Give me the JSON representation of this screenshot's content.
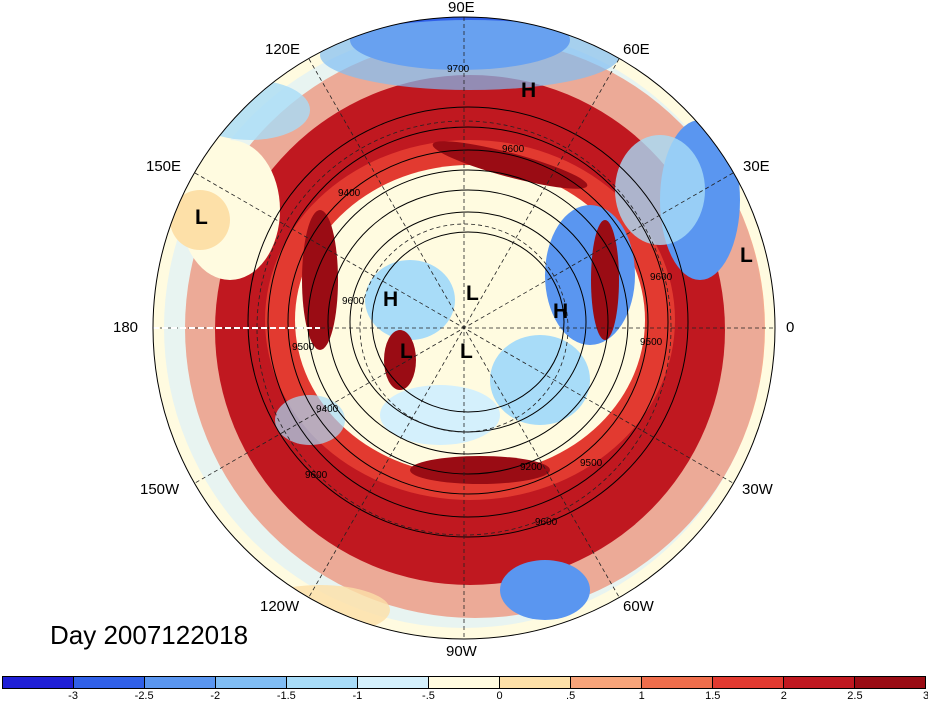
{
  "title": "Day 2007122018",
  "longitude_labels": {
    "lon_90e": "90E",
    "lon_60e": "60E",
    "lon_120e": "120E",
    "lon_150e": "150E",
    "lon_30e": "30E",
    "lon_180": "180",
    "lon_0": "0",
    "lon_150w": "150W",
    "lon_30w": "30W",
    "lon_120w": "120W",
    "lon_60w": "60W",
    "lon_90w": "90W"
  },
  "pressure_systems": [
    {
      "type": "H"
    },
    {
      "type": "H"
    },
    {
      "type": "H"
    },
    {
      "type": "L"
    },
    {
      "type": "L"
    },
    {
      "type": "L"
    },
    {
      "type": "L"
    },
    {
      "type": "L"
    }
  ],
  "contour_labels": [
    "9700",
    "9600",
    "9600",
    "9600",
    "9500",
    "9400",
    "9400",
    "9600",
    "9200",
    "9500",
    "9600",
    "9500"
  ],
  "colorbar": {
    "labels": [
      "-3",
      "-2.5",
      "-2",
      "-1.5",
      "-1",
      "-.5",
      "0",
      ".5",
      "1",
      "1.5",
      "2",
      "2.5",
      "3"
    ],
    "colors": [
      "#1f1fd6",
      "#3060e8",
      "#5a96f0",
      "#80bdf4",
      "#a8dcf8",
      "#d4f0fc",
      "#fffbe0",
      "#fde0a8",
      "#f7a47a",
      "#ef6e4c",
      "#e23a30",
      "#c01820",
      "#9a0c14"
    ]
  }
}
